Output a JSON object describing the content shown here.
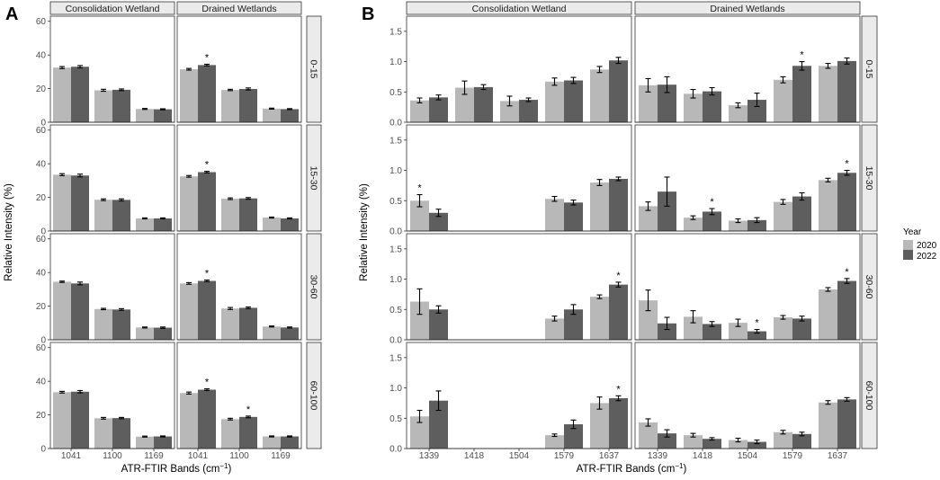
{
  "figure": {
    "panel_labels": [
      "A",
      "B"
    ],
    "legend_title": "Year",
    "legend_items": [
      {
        "label": "2020",
        "color": "#b8b8b8"
      },
      {
        "label": "2022",
        "color": "#5e5e5e"
      }
    ],
    "colors": {
      "bar_2020": "#b8b8b8",
      "bar_2022": "#5e5e5e",
      "strip": "#ebebeb",
      "frame": "#333333"
    }
  },
  "chart_data": [
    {
      "panel": "A",
      "type": "bar",
      "xlabel": "ATR-FTIR Bands (cm",
      "xlabel_sup": "−1",
      "xlabel_end": ")",
      "ylabel": "Relative Intensity (%)",
      "ylim": [
        0,
        62
      ],
      "yticks": [
        0,
        20,
        40,
        60
      ],
      "ytick_labels": [
        "0",
        "20",
        "40",
        "60"
      ],
      "columns": [
        "Consolidation Wetland",
        "Drained Wetlands"
      ],
      "rows": [
        "0-15",
        "15-30",
        "30-60",
        "60-100"
      ],
      "categories": [
        "1041",
        "1100",
        "1169"
      ],
      "series_names": [
        "2020",
        "2022"
      ],
      "panels": [
        {
          "column": 0,
          "row": 0,
          "values": [
            [
              32.5,
              33
            ],
            [
              19,
              19.3
            ],
            [
              7.9,
              7.7
            ]
          ],
          "errors": [
            [
              0.6,
              0.7
            ],
            [
              0.6,
              0.5
            ],
            [
              0.3,
              0.3
            ]
          ],
          "stars": []
        },
        {
          "column": 1,
          "row": 0,
          "values": [
            [
              31.5,
              34
            ],
            [
              19.2,
              19.8
            ],
            [
              8.1,
              7.8
            ]
          ],
          "errors": [
            [
              0.5,
              0.5
            ],
            [
              0.4,
              0.6
            ],
            [
              0.3,
              0.3
            ]
          ],
          "stars": [
            [
              0,
              1
            ]
          ]
        },
        {
          "column": 0,
          "row": 1,
          "values": [
            [
              33.5,
              33
            ],
            [
              18.6,
              18.5
            ],
            [
              7.5,
              7.5
            ]
          ],
          "errors": [
            [
              0.6,
              0.8
            ],
            [
              0.5,
              0.6
            ],
            [
              0.3,
              0.3
            ]
          ],
          "stars": []
        },
        {
          "column": 1,
          "row": 1,
          "values": [
            [
              32.5,
              35
            ],
            [
              19.2,
              19.4
            ],
            [
              8,
              7.5
            ]
          ],
          "errors": [
            [
              0.5,
              0.5
            ],
            [
              0.5,
              0.5
            ],
            [
              0.3,
              0.3
            ]
          ],
          "stars": [
            [
              0,
              1
            ]
          ]
        },
        {
          "column": 0,
          "row": 2,
          "values": [
            [
              34.5,
              33.5
            ],
            [
              18.3,
              18
            ],
            [
              7.3,
              7.2
            ]
          ],
          "errors": [
            [
              0.4,
              0.8
            ],
            [
              0.4,
              0.5
            ],
            [
              0.3,
              0.4
            ]
          ],
          "stars": []
        },
        {
          "column": 1,
          "row": 2,
          "values": [
            [
              33.5,
              35
            ],
            [
              18.6,
              19
            ],
            [
              7.9,
              7.3
            ]
          ],
          "errors": [
            [
              0.5,
              0.5
            ],
            [
              0.6,
              0.5
            ],
            [
              0.3,
              0.3
            ]
          ],
          "stars": [
            [
              0,
              1
            ]
          ]
        },
        {
          "column": 0,
          "row": 3,
          "values": [
            [
              33.5,
              33.8
            ],
            [
              18,
              18.1
            ],
            [
              7.1,
              7.2
            ]
          ],
          "errors": [
            [
              0.5,
              0.7
            ],
            [
              0.5,
              0.4
            ],
            [
              0.3,
              0.3
            ]
          ],
          "stars": []
        },
        {
          "column": 1,
          "row": 3,
          "values": [
            [
              33,
              35
            ],
            [
              17.5,
              18.8
            ],
            [
              7.2,
              7.2
            ]
          ],
          "errors": [
            [
              0.6,
              0.5
            ],
            [
              0.5,
              0.5
            ],
            [
              0.3,
              0.3
            ]
          ],
          "stars": [
            [
              0,
              1
            ],
            [
              1,
              1
            ]
          ]
        }
      ]
    },
    {
      "panel": "B",
      "type": "bar",
      "xlabel": "ATR-FTIR Bands (cm",
      "xlabel_sup": "−1",
      "xlabel_end": ")",
      "ylabel": "Relative Intensity (%)",
      "ylim": [
        0,
        1.72
      ],
      "yticks": [
        0,
        0.5,
        1.0,
        1.5
      ],
      "ytick_labels": [
        "0.0",
        "0.5",
        "1.0",
        "1.5"
      ],
      "columns": [
        "Consolidation Wetland",
        "Drained Wetlands"
      ],
      "rows": [
        "0-15",
        "15-30",
        "30-60",
        "60-100"
      ],
      "categories": [
        "1339",
        "1418",
        "1504",
        "1579",
        "1637"
      ],
      "series_names": [
        "2020",
        "2022"
      ],
      "panels": [
        {
          "column": 0,
          "row": 0,
          "values": [
            [
              0.36,
              0.41
            ],
            [
              0.57,
              0.58
            ],
            [
              0.35,
              0.37
            ],
            [
              0.67,
              0.69
            ],
            [
              0.87,
              1.02
            ]
          ],
          "errors": [
            [
              0.04,
              0.04
            ],
            [
              0.11,
              0.04
            ],
            [
              0.08,
              0.03
            ],
            [
              0.06,
              0.05
            ],
            [
              0.05,
              0.05
            ]
          ],
          "stars": []
        },
        {
          "column": 1,
          "row": 0,
          "values": [
            [
              0.61,
              0.62
            ],
            [
              0.47,
              0.51
            ],
            [
              0.28,
              0.37
            ],
            [
              0.7,
              0.93
            ],
            [
              0.93,
              1.01
            ]
          ],
          "errors": [
            [
              0.11,
              0.13
            ],
            [
              0.07,
              0.06
            ],
            [
              0.04,
              0.11
            ],
            [
              0.05,
              0.07
            ],
            [
              0.04,
              0.05
            ]
          ],
          "stars": [
            [
              3,
              1
            ]
          ]
        },
        {
          "column": 0,
          "row": 1,
          "values": [
            [
              0.5,
              0.3
            ],
            null,
            null,
            [
              0.53,
              0.47
            ],
            [
              0.8,
              0.86
            ]
          ],
          "errors": [
            [
              0.1,
              0.06
            ],
            null,
            null,
            [
              0.04,
              0.04
            ],
            [
              0.05,
              0.03
            ]
          ],
          "stars": [
            [
              0,
              0
            ]
          ]
        },
        {
          "column": 1,
          "row": 1,
          "values": [
            [
              0.41,
              0.65
            ],
            [
              0.22,
              0.32
            ],
            [
              0.17,
              0.18
            ],
            [
              0.48,
              0.57
            ],
            [
              0.84,
              0.96
            ]
          ],
          "errors": [
            [
              0.07,
              0.24
            ],
            [
              0.03,
              0.05
            ],
            [
              0.03,
              0.04
            ],
            [
              0.04,
              0.06
            ],
            [
              0.03,
              0.04
            ]
          ],
          "stars": [
            [
              1,
              1
            ],
            [
              4,
              1
            ]
          ]
        },
        {
          "column": 0,
          "row": 2,
          "values": [
            [
              0.63,
              0.5
            ],
            null,
            null,
            [
              0.35,
              0.5
            ],
            [
              0.71,
              0.91
            ]
          ],
          "errors": [
            [
              0.21,
              0.06
            ],
            null,
            null,
            [
              0.04,
              0.08
            ],
            [
              0.03,
              0.04
            ]
          ],
          "stars": [
            [
              4,
              1
            ]
          ]
        },
        {
          "column": 1,
          "row": 2,
          "values": [
            [
              0.65,
              0.27
            ],
            [
              0.38,
              0.26
            ],
            [
              0.28,
              0.14
            ],
            [
              0.37,
              0.35
            ],
            [
              0.83,
              0.97
            ]
          ],
          "errors": [
            [
              0.17,
              0.1
            ],
            [
              0.1,
              0.04
            ],
            [
              0.06,
              0.03
            ],
            [
              0.03,
              0.04
            ],
            [
              0.03,
              0.04
            ]
          ],
          "stars": [
            [
              2,
              1
            ],
            [
              4,
              1
            ]
          ]
        },
        {
          "column": 0,
          "row": 3,
          "values": [
            [
              0.53,
              0.79
            ],
            null,
            null,
            [
              0.22,
              0.4
            ],
            [
              0.75,
              0.83
            ]
          ],
          "errors": [
            [
              0.1,
              0.16
            ],
            null,
            null,
            [
              0.02,
              0.07
            ],
            [
              0.1,
              0.04
            ]
          ],
          "stars": [
            [
              4,
              1
            ]
          ]
        },
        {
          "column": 1,
          "row": 3,
          "values": [
            [
              0.43,
              0.25
            ],
            [
              0.22,
              0.16
            ],
            [
              0.14,
              0.11
            ],
            [
              0.27,
              0.24
            ],
            [
              0.76,
              0.81
            ]
          ],
          "errors": [
            [
              0.06,
              0.06
            ],
            [
              0.03,
              0.02
            ],
            [
              0.03,
              0.03
            ],
            [
              0.03,
              0.03
            ],
            [
              0.03,
              0.03
            ]
          ],
          "stars": []
        }
      ]
    }
  ]
}
